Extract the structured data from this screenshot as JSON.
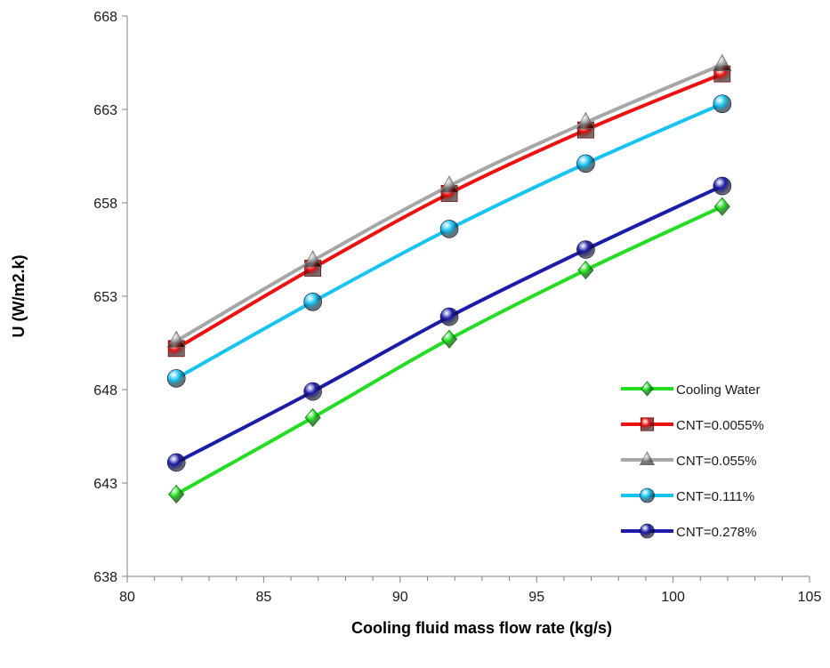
{
  "chart_data": {
    "type": "line",
    "title": "",
    "xlabel": "Cooling fluid mass flow rate (kg/s)",
    "ylabel": "U (W/m2.k)",
    "xlim": [
      80,
      105
    ],
    "ylim": [
      638,
      668
    ],
    "xticks": [
      80,
      85,
      90,
      95,
      100,
      105
    ],
    "yticks": [
      638,
      643,
      648,
      653,
      658,
      663,
      668
    ],
    "grid": false,
    "legend_position": "right",
    "x": [
      81.8,
      86.8,
      91.8,
      96.8,
      101.8
    ],
    "series": [
      {
        "name": "Cooling Water",
        "color": "#22dd22",
        "marker": "diamond",
        "values": [
          642.4,
          646.5,
          650.7,
          654.4,
          657.8
        ]
      },
      {
        "name": "CNT=0.0055%",
        "color": "#ee1111",
        "marker": "square",
        "values": [
          650.2,
          654.5,
          658.5,
          661.9,
          664.9
        ]
      },
      {
        "name": "CNT=0.055%",
        "color": "#a6a6a6",
        "marker": "triangle",
        "values": [
          650.6,
          654.9,
          658.9,
          662.3,
          665.4
        ]
      },
      {
        "name": "CNT=0.111%",
        "color": "#19c3f0",
        "marker": "circle",
        "values": [
          648.6,
          652.7,
          656.6,
          660.1,
          663.3
        ]
      },
      {
        "name": "CNT=0.278%",
        "color": "#1c1ca8",
        "marker": "circle",
        "values": [
          644.1,
          647.9,
          651.9,
          655.5,
          658.9
        ]
      }
    ]
  }
}
